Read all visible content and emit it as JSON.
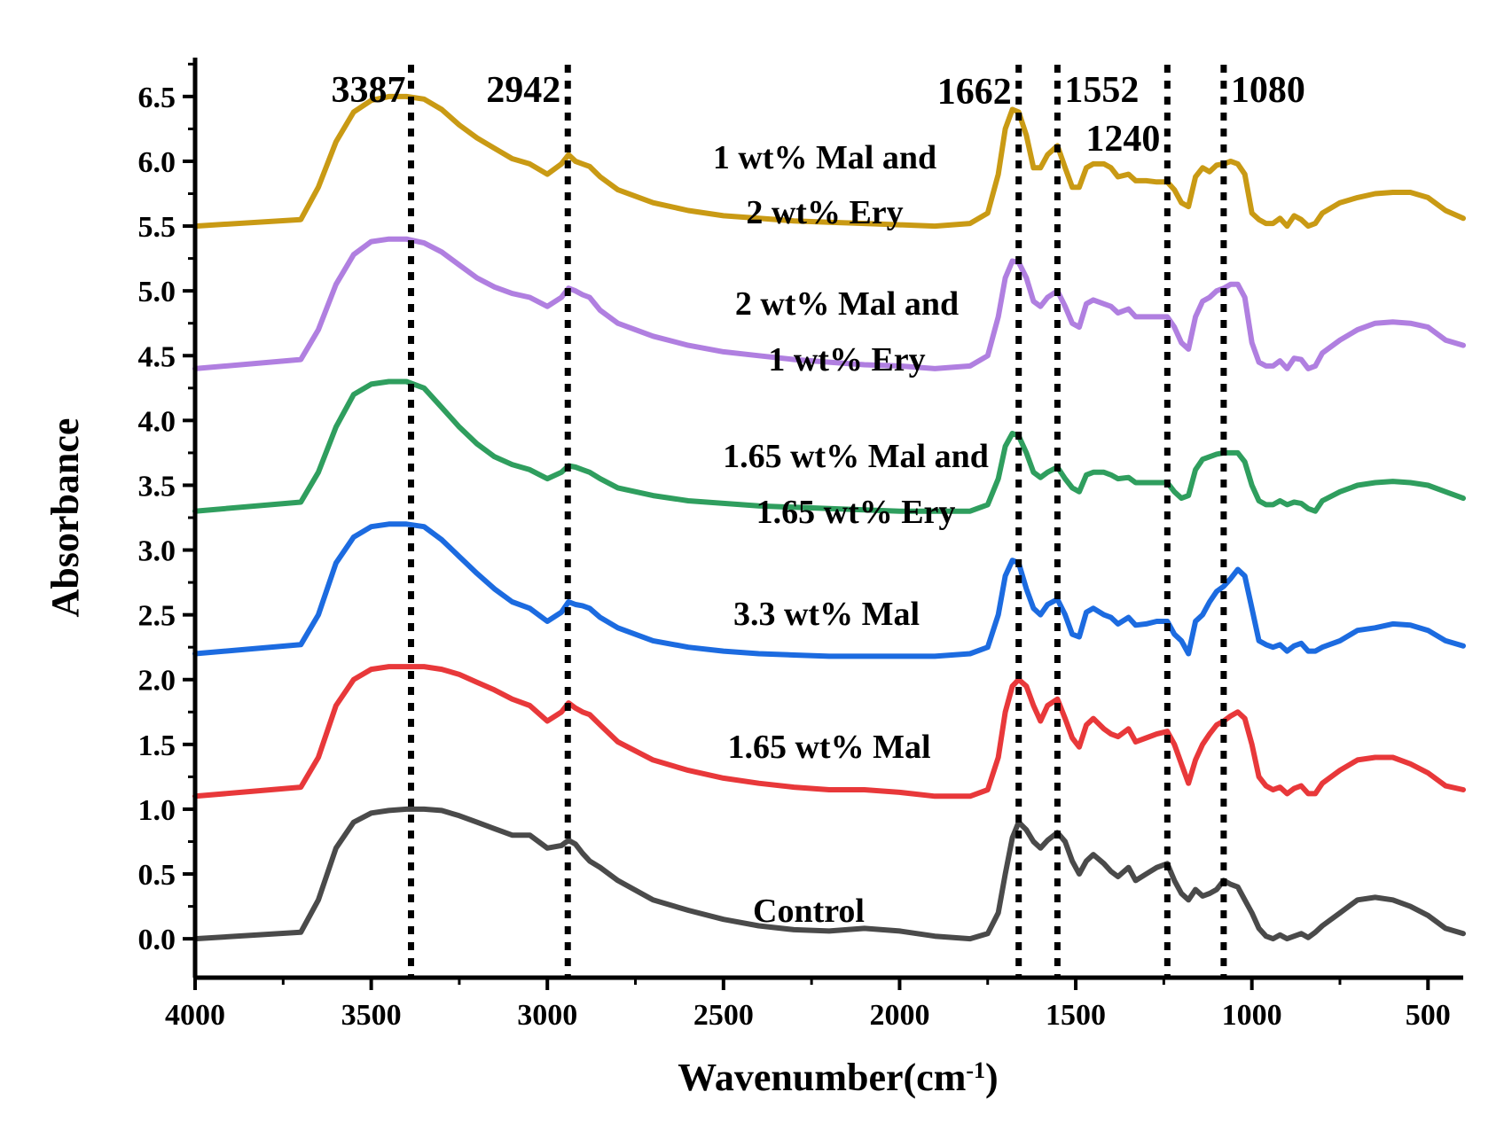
{
  "chart_data": {
    "type": "line",
    "xlabel": "Wavenumber(cm",
    "xlabel_sup": "-1",
    "xlabel_close": ")",
    "ylabel": "Absorbance",
    "xlim": [
      4000,
      400
    ],
    "ylim": [
      -0.3,
      6.8
    ],
    "x_reversed": true,
    "xticks": [
      4000,
      3500,
      3000,
      2500,
      2000,
      1500,
      1000,
      500
    ],
    "yticks": [
      0.0,
      0.5,
      1.0,
      1.5,
      2.0,
      2.5,
      3.0,
      3.5,
      4.0,
      4.5,
      5.0,
      5.5,
      6.0,
      6.5
    ],
    "xtick_labels": [
      "4000",
      "3500",
      "3000",
      "2500",
      "2000",
      "1500",
      "1000",
      "500"
    ],
    "ytick_labels": [
      "0.0",
      "0.5",
      "1.0",
      "1.5",
      "2.0",
      "2.5",
      "3.0",
      "3.5",
      "4.0",
      "4.5",
      "5.0",
      "5.5",
      "6.0",
      "6.5"
    ],
    "grid": false,
    "reference_lines": [
      {
        "x": 3387,
        "label": "3387"
      },
      {
        "x": 2942,
        "label": "2942"
      },
      {
        "x": 1662,
        "label": "1662"
      },
      {
        "x": 1552,
        "label": "1552"
      },
      {
        "x": 1240,
        "label": "1240"
      },
      {
        "x": 1080,
        "label": "1080"
      }
    ],
    "x": [
      4000,
      3700,
      3650,
      3600,
      3550,
      3500,
      3450,
      3400,
      3350,
      3300,
      3250,
      3200,
      3150,
      3100,
      3050,
      3000,
      2960,
      2940,
      2920,
      2900,
      2880,
      2850,
      2800,
      2700,
      2600,
      2500,
      2400,
      2300,
      2200,
      2100,
      2000,
      1900,
      1800,
      1750,
      1720,
      1700,
      1680,
      1662,
      1640,
      1620,
      1600,
      1580,
      1552,
      1530,
      1510,
      1490,
      1470,
      1450,
      1420,
      1400,
      1380,
      1350,
      1330,
      1300,
      1270,
      1240,
      1220,
      1200,
      1180,
      1160,
      1140,
      1120,
      1100,
      1080,
      1060,
      1040,
      1020,
      1000,
      980,
      960,
      940,
      920,
      900,
      880,
      860,
      840,
      820,
      800,
      750,
      700,
      650,
      600,
      550,
      500,
      450,
      400
    ],
    "series": [
      {
        "name": "Control",
        "color": "#4a4a4a",
        "values": [
          0.0,
          0.05,
          0.3,
          0.7,
          0.9,
          0.97,
          0.99,
          1.0,
          1.0,
          0.99,
          0.95,
          0.9,
          0.85,
          0.8,
          0.8,
          0.7,
          0.72,
          0.76,
          0.73,
          0.66,
          0.6,
          0.55,
          0.45,
          0.3,
          0.22,
          0.15,
          0.1,
          0.07,
          0.06,
          0.08,
          0.06,
          0.02,
          0.0,
          0.04,
          0.2,
          0.5,
          0.78,
          0.9,
          0.84,
          0.75,
          0.7,
          0.76,
          0.82,
          0.75,
          0.6,
          0.5,
          0.6,
          0.65,
          0.58,
          0.52,
          0.48,
          0.55,
          0.45,
          0.5,
          0.55,
          0.58,
          0.45,
          0.35,
          0.3,
          0.38,
          0.33,
          0.35,
          0.38,
          0.45,
          0.42,
          0.4,
          0.3,
          0.2,
          0.08,
          0.02,
          0.0,
          0.03,
          0.0,
          0.02,
          0.04,
          0.01,
          0.05,
          0.1,
          0.2,
          0.3,
          0.32,
          0.3,
          0.25,
          0.18,
          0.08,
          0.04
        ]
      },
      {
        "name": "1.65 wt% Mal",
        "color": "#e8383a",
        "values": [
          1.1,
          1.17,
          1.4,
          1.8,
          2.0,
          2.08,
          2.1,
          2.1,
          2.1,
          2.08,
          2.04,
          1.98,
          1.92,
          1.85,
          1.8,
          1.68,
          1.75,
          1.82,
          1.78,
          1.75,
          1.73,
          1.65,
          1.52,
          1.38,
          1.3,
          1.24,
          1.2,
          1.17,
          1.15,
          1.15,
          1.13,
          1.1,
          1.1,
          1.15,
          1.4,
          1.75,
          1.95,
          2.0,
          1.95,
          1.8,
          1.68,
          1.8,
          1.85,
          1.7,
          1.55,
          1.48,
          1.65,
          1.7,
          1.62,
          1.58,
          1.56,
          1.62,
          1.52,
          1.55,
          1.58,
          1.6,
          1.5,
          1.35,
          1.2,
          1.38,
          1.5,
          1.58,
          1.65,
          1.68,
          1.72,
          1.75,
          1.7,
          1.5,
          1.25,
          1.18,
          1.15,
          1.17,
          1.12,
          1.16,
          1.18,
          1.12,
          1.12,
          1.2,
          1.3,
          1.38,
          1.4,
          1.4,
          1.35,
          1.28,
          1.18,
          1.15
        ]
      },
      {
        "name": "3.3 wt% Mal",
        "color": "#1c6be0",
        "values": [
          2.2,
          2.27,
          2.5,
          2.9,
          3.1,
          3.18,
          3.2,
          3.2,
          3.18,
          3.08,
          2.95,
          2.82,
          2.7,
          2.6,
          2.55,
          2.45,
          2.52,
          2.6,
          2.58,
          2.57,
          2.55,
          2.48,
          2.4,
          2.3,
          2.25,
          2.22,
          2.2,
          2.19,
          2.18,
          2.18,
          2.18,
          2.18,
          2.2,
          2.25,
          2.5,
          2.8,
          2.92,
          2.9,
          2.7,
          2.55,
          2.5,
          2.58,
          2.62,
          2.5,
          2.35,
          2.33,
          2.52,
          2.55,
          2.5,
          2.48,
          2.43,
          2.48,
          2.42,
          2.43,
          2.45,
          2.45,
          2.35,
          2.3,
          2.2,
          2.45,
          2.5,
          2.6,
          2.68,
          2.72,
          2.78,
          2.85,
          2.8,
          2.55,
          2.3,
          2.27,
          2.25,
          2.27,
          2.22,
          2.26,
          2.28,
          2.22,
          2.22,
          2.25,
          2.3,
          2.38,
          2.4,
          2.43,
          2.42,
          2.38,
          2.3,
          2.26
        ]
      },
      {
        "name": "1.65 wt% Mal and 1.65 wt% Ery",
        "label_line1": "1.65 wt% Mal and",
        "label_line2": "1.65 wt% Ery",
        "color": "#2f9e5e",
        "values": [
          3.3,
          3.37,
          3.6,
          3.95,
          4.2,
          4.28,
          4.3,
          4.3,
          4.25,
          4.1,
          3.95,
          3.82,
          3.72,
          3.66,
          3.62,
          3.55,
          3.6,
          3.65,
          3.64,
          3.62,
          3.6,
          3.55,
          3.48,
          3.42,
          3.38,
          3.36,
          3.34,
          3.33,
          3.32,
          3.31,
          3.3,
          3.3,
          3.3,
          3.35,
          3.55,
          3.8,
          3.9,
          3.88,
          3.75,
          3.6,
          3.56,
          3.6,
          3.64,
          3.55,
          3.48,
          3.45,
          3.58,
          3.6,
          3.6,
          3.58,
          3.55,
          3.56,
          3.52,
          3.52,
          3.52,
          3.52,
          3.45,
          3.4,
          3.42,
          3.62,
          3.7,
          3.72,
          3.74,
          3.75,
          3.75,
          3.75,
          3.68,
          3.5,
          3.38,
          3.35,
          3.35,
          3.38,
          3.35,
          3.37,
          3.36,
          3.32,
          3.3,
          3.38,
          3.45,
          3.5,
          3.52,
          3.53,
          3.52,
          3.5,
          3.45,
          3.4
        ]
      },
      {
        "name": "2 wt% Mal and 1 wt% Ery",
        "label_line1": "2 wt% Mal and",
        "label_line2": "1 wt% Ery",
        "color": "#b07fe0",
        "values": [
          4.4,
          4.47,
          4.7,
          5.05,
          5.28,
          5.38,
          5.4,
          5.4,
          5.37,
          5.3,
          5.2,
          5.1,
          5.03,
          4.98,
          4.95,
          4.88,
          4.95,
          5.02,
          5.0,
          4.97,
          4.95,
          4.85,
          4.75,
          4.65,
          4.58,
          4.53,
          4.5,
          4.47,
          4.45,
          4.43,
          4.42,
          4.4,
          4.42,
          4.5,
          4.8,
          5.1,
          5.23,
          5.22,
          5.1,
          4.92,
          4.88,
          4.95,
          5.0,
          4.88,
          4.75,
          4.72,
          4.9,
          4.93,
          4.9,
          4.88,
          4.83,
          4.86,
          4.8,
          4.8,
          4.8,
          4.8,
          4.72,
          4.6,
          4.55,
          4.8,
          4.92,
          4.95,
          5.0,
          5.02,
          5.05,
          5.05,
          4.95,
          4.6,
          4.45,
          4.42,
          4.42,
          4.46,
          4.4,
          4.48,
          4.47,
          4.4,
          4.42,
          4.52,
          4.62,
          4.7,
          4.75,
          4.76,
          4.75,
          4.72,
          4.62,
          4.58
        ]
      },
      {
        "name": "1 wt% Mal and 2 wt% Ery",
        "label_line1": "1 wt% Mal and",
        "label_line2": "2 wt% Ery",
        "color": "#c99a14",
        "values": [
          5.5,
          5.55,
          5.8,
          6.15,
          6.38,
          6.47,
          6.5,
          6.5,
          6.48,
          6.4,
          6.28,
          6.18,
          6.1,
          6.02,
          5.98,
          5.9,
          5.98,
          6.05,
          6.0,
          5.98,
          5.96,
          5.88,
          5.78,
          5.68,
          5.62,
          5.58,
          5.56,
          5.54,
          5.53,
          5.52,
          5.51,
          5.5,
          5.52,
          5.6,
          5.9,
          6.25,
          6.4,
          6.38,
          6.2,
          5.95,
          5.95,
          6.05,
          6.12,
          5.95,
          5.8,
          5.8,
          5.95,
          5.98,
          5.98,
          5.95,
          5.88,
          5.9,
          5.85,
          5.85,
          5.84,
          5.84,
          5.78,
          5.68,
          5.65,
          5.88,
          5.95,
          5.92,
          5.97,
          5.98,
          6.0,
          5.98,
          5.9,
          5.6,
          5.55,
          5.52,
          5.52,
          5.56,
          5.5,
          5.58,
          5.55,
          5.5,
          5.52,
          5.6,
          5.68,
          5.72,
          5.75,
          5.76,
          5.76,
          5.72,
          5.62,
          5.56
        ]
      }
    ]
  }
}
